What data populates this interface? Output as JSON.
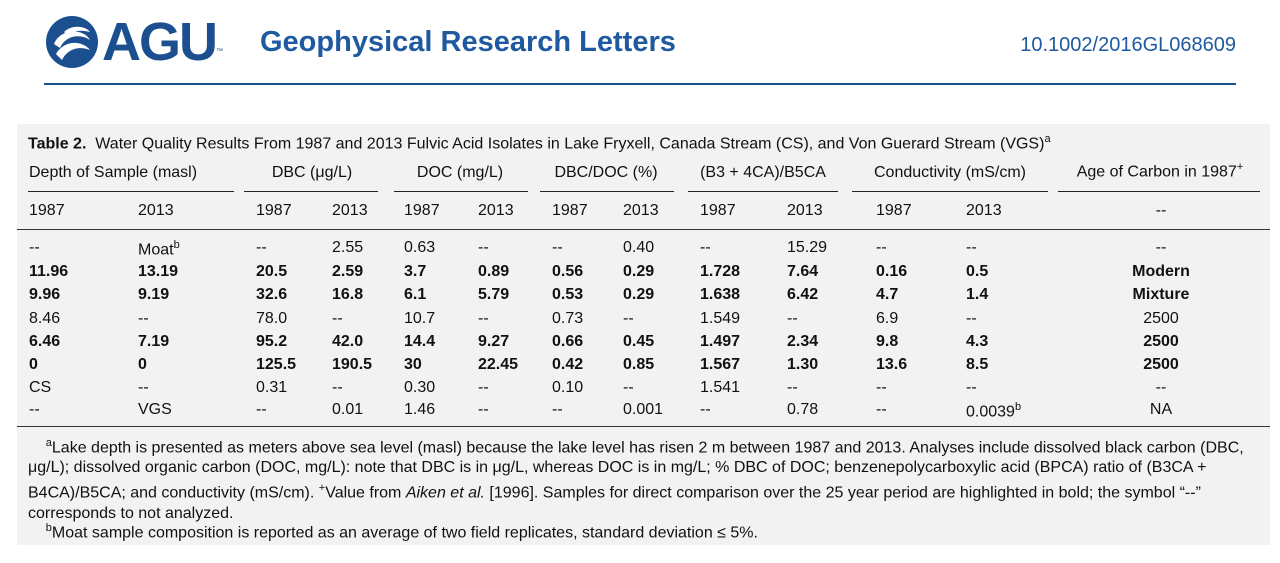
{
  "header": {
    "logo_text": "AGU",
    "logo_tm": "™",
    "journal": "Geophysical Research Letters",
    "doi": "10.1002/2016GL068609"
  },
  "table": {
    "label": "Table 2.",
    "title": "Water Quality Results From 1987 and 2013 Fulvic Acid Isolates in Lake Fryxell, Canada Stream (CS), and Von Guerard Stream (VGS)",
    "title_sup": "a",
    "group_headers": {
      "depth": "Depth of Sample (masl)",
      "dbc": "DBC (μg/L)",
      "doc": "DOC (mg/L)",
      "ratio": "DBC/DOC (%)",
      "bpca": "(B3 + 4CA)/B5CA",
      "cond": "Conductivity (mS/cm)",
      "age": "Age of Carbon in 1987",
      "age_sup": "+"
    },
    "year_row": [
      "1987",
      "2013",
      "1987",
      "2013",
      "1987",
      "2013",
      "1987",
      "2013",
      "1987",
      "2013",
      "1987",
      "2013",
      "--"
    ],
    "rows": [
      {
        "bold": false,
        "cells": [
          "--",
          "Moat",
          "--",
          "2.55",
          "0.63",
          "--",
          "--",
          "0.40",
          "--",
          "15.29",
          "--",
          "--",
          "--"
        ],
        "sup": "b"
      },
      {
        "bold": true,
        "cells": [
          "11.96",
          "13.19",
          "20.5",
          "2.59",
          "3.7",
          "0.89",
          "0.56",
          "0.29",
          "1.728",
          "7.64",
          "0.16",
          "0.5",
          "Modern"
        ]
      },
      {
        "bold": true,
        "cells": [
          "9.96",
          "9.19",
          "32.6",
          "16.8",
          "6.1",
          "5.79",
          "0.53",
          "0.29",
          "1.638",
          "6.42",
          "4.7",
          "1.4",
          "Mixture"
        ]
      },
      {
        "bold": false,
        "cells": [
          "8.46",
          "--",
          "78.0",
          "--",
          "10.7",
          "--",
          "0.73",
          "--",
          "1.549",
          "--",
          "6.9",
          "--",
          "2500"
        ]
      },
      {
        "bold": true,
        "cells": [
          "6.46",
          "7.19",
          "95.2",
          "42.0",
          "14.4",
          "9.27",
          "0.66",
          "0.45",
          "1.497",
          "2.34",
          "9.8",
          "4.3",
          "2500"
        ]
      },
      {
        "bold": true,
        "cells": [
          "0",
          "0",
          "125.5",
          "190.5",
          "30",
          "22.45",
          "0.42",
          "0.85",
          "1.567",
          "1.30",
          "13.6",
          "8.5",
          "2500"
        ]
      },
      {
        "bold": false,
        "cells": [
          "CS",
          "--",
          "0.31",
          "--",
          "0.30",
          "--",
          "0.10",
          "--",
          "1.541",
          "--",
          "--",
          "--",
          "--"
        ]
      },
      {
        "bold": false,
        "cells": [
          "--",
          "VGS",
          "--",
          "0.01",
          "1.46",
          "--",
          "--",
          "0.001",
          "--",
          "0.78",
          "--",
          "0.0039",
          "NA"
        ],
        "sup": "b"
      }
    ]
  },
  "footnotes": {
    "a_mark": "a",
    "a_text_1": "Lake depth is presented as meters above sea level (masl) because the lake level has risen 2 m between 1987 and 2013. Analyses include dissolved black carbon (DBC, μg/L); dissolved organic carbon (DOC, mg/L): note that DBC is in μg/L, whereas DOC is in mg/L; % DBC of DOC; benzenepolycarboxylic acid (BPCA) ratio of (B3CA + B4CA)/B5CA; and conductivity (mS/cm). ",
    "a_plus": "+",
    "a_text_2": "Value from ",
    "a_cite": "Aiken et al.",
    "a_text_3": " [1996]. Samples for direct comparison over the 25 year period are highlighted in bold; the symbol “--” corresponds to not analyzed.",
    "b_mark": "b",
    "b_text": "Moat sample composition is reported as an average of two field replicates, standard deviation ≤ 5%."
  }
}
